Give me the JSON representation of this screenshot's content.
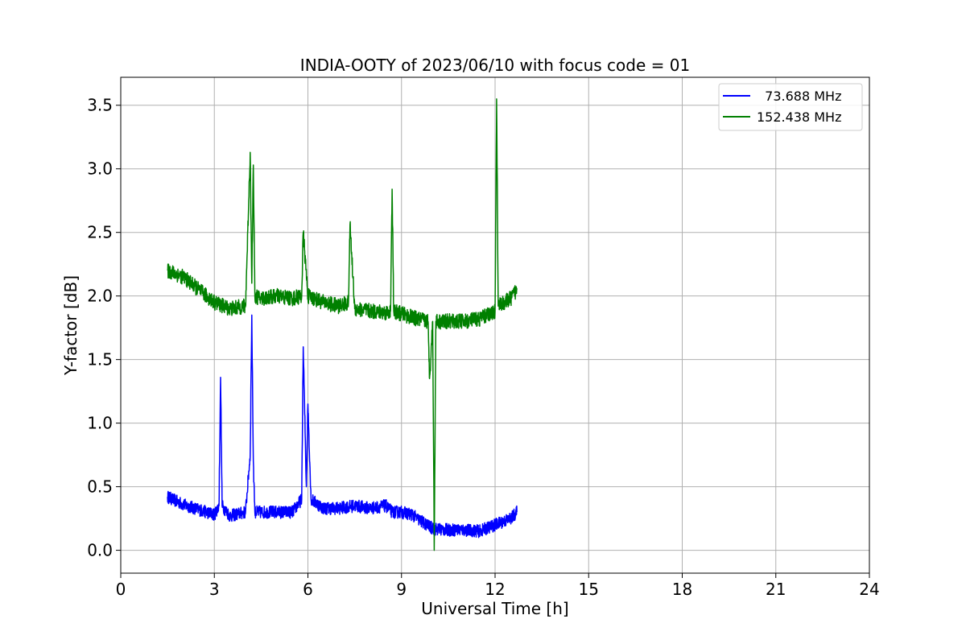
{
  "chart_data": {
    "type": "line",
    "title": "INDIA-OOTY of 2023/06/10 with focus code = 01",
    "xlabel": "Universal Time [h]",
    "ylabel": "Y-factor [dB]",
    "xlim": [
      0,
      24
    ],
    "ylim": [
      -0.18,
      3.72
    ],
    "xticks": [
      0,
      3,
      6,
      9,
      12,
      15,
      18,
      21,
      24
    ],
    "yticks": [
      0.0,
      0.5,
      1.0,
      1.5,
      2.0,
      2.5,
      3.0,
      3.5
    ],
    "xtick_labels": [
      "0",
      "3",
      "6",
      "9",
      "12",
      "15",
      "18",
      "21",
      "24"
    ],
    "ytick_labels": [
      "0.0",
      "0.5",
      "1.0",
      "1.5",
      "2.0",
      "2.5",
      "3.0",
      "3.5"
    ],
    "grid": true,
    "legend_position": "top-right",
    "series": [
      {
        "name": "  73.688 MHz",
        "color": "#0000ff",
        "noise": 0.05,
        "x": [
          1.5,
          2.0,
          2.5,
          3.0,
          3.15,
          3.2,
          3.25,
          3.5,
          4.0,
          4.15,
          4.2,
          4.25,
          4.3,
          4.5,
          5.0,
          5.5,
          5.8,
          5.85,
          5.95,
          6.0,
          6.1,
          6.5,
          7.0,
          7.5,
          8.0,
          8.5,
          8.7,
          9.0,
          9.35,
          9.5,
          10.0,
          10.5,
          11.0,
          11.5,
          12.0,
          12.5,
          12.7
        ],
        "y": [
          0.42,
          0.36,
          0.32,
          0.28,
          0.35,
          1.36,
          0.35,
          0.27,
          0.3,
          0.75,
          1.85,
          0.7,
          0.3,
          0.3,
          0.3,
          0.3,
          0.4,
          1.6,
          0.5,
          1.15,
          0.4,
          0.33,
          0.33,
          0.35,
          0.33,
          0.35,
          0.3,
          0.3,
          0.28,
          0.25,
          0.17,
          0.16,
          0.16,
          0.15,
          0.2,
          0.25,
          0.3
        ]
      },
      {
        "name": "152.438 MHz",
        "color": "#008000",
        "noise": 0.06,
        "x": [
          1.5,
          2.0,
          2.5,
          3.0,
          3.5,
          4.0,
          4.15,
          4.2,
          4.25,
          4.3,
          4.5,
          5.0,
          5.5,
          5.8,
          5.85,
          6.0,
          6.5,
          7.0,
          7.3,
          7.35,
          7.5,
          8.0,
          8.5,
          8.65,
          8.7,
          8.75,
          9.0,
          9.5,
          9.85,
          9.9,
          10.0,
          10.05,
          10.1,
          10.5,
          11.0,
          11.5,
          12.0,
          12.05,
          12.1,
          12.5,
          12.7
        ],
        "y": [
          2.2,
          2.15,
          2.05,
          1.95,
          1.9,
          1.92,
          3.13,
          2.1,
          3.03,
          2.0,
          1.98,
          2.0,
          1.98,
          2.0,
          2.5,
          2.0,
          1.95,
          1.92,
          1.95,
          2.56,
          1.9,
          1.88,
          1.87,
          1.88,
          2.84,
          1.88,
          1.86,
          1.82,
          1.8,
          1.35,
          1.8,
          0.0,
          1.8,
          1.8,
          1.8,
          1.82,
          1.88,
          3.55,
          1.92,
          1.98,
          2.05
        ]
      }
    ]
  }
}
